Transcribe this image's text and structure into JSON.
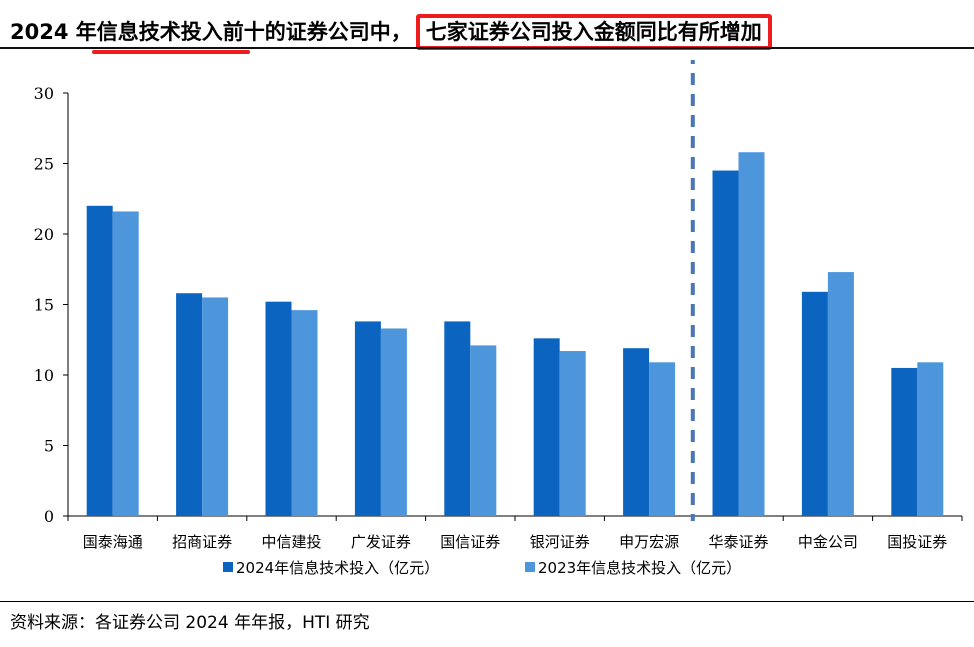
{
  "headline": {
    "part1": "2024 年信息技术投入前十的证券公司中，",
    "part2": "七家证券公司投入金额同比有所增加"
  },
  "source": "资料来源：各证券公司 2024 年年报，HTI 研究",
  "colors": {
    "series_2024": "#0a64c0",
    "series_2023": "#4e96dc",
    "highlight": "#ee1c1c",
    "divider": "#4a76b8"
  },
  "chart_data": {
    "type": "bar",
    "categories": [
      "国泰海通",
      "招商证券",
      "中信建投",
      "广发证券",
      "国信证券",
      "银河证券",
      "申万宏源",
      "华泰证券",
      "中金公司",
      "国投证券"
    ],
    "series": [
      {
        "name": "2024年信息技术投入（亿元）",
        "values": [
          22.0,
          15.8,
          15.2,
          13.8,
          13.8,
          12.6,
          11.9,
          24.5,
          15.9,
          10.5
        ]
      },
      {
        "name": "2023年信息技术投入（亿元）",
        "values": [
          21.6,
          15.5,
          14.6,
          13.3,
          12.1,
          11.7,
          10.9,
          25.8,
          17.3,
          10.9
        ]
      }
    ],
    "ylim": [
      0,
      30
    ],
    "yticks": [
      "0",
      "5",
      "10",
      "15",
      "20",
      "25",
      "30"
    ],
    "legend_position": "bottom",
    "grid": false
  }
}
